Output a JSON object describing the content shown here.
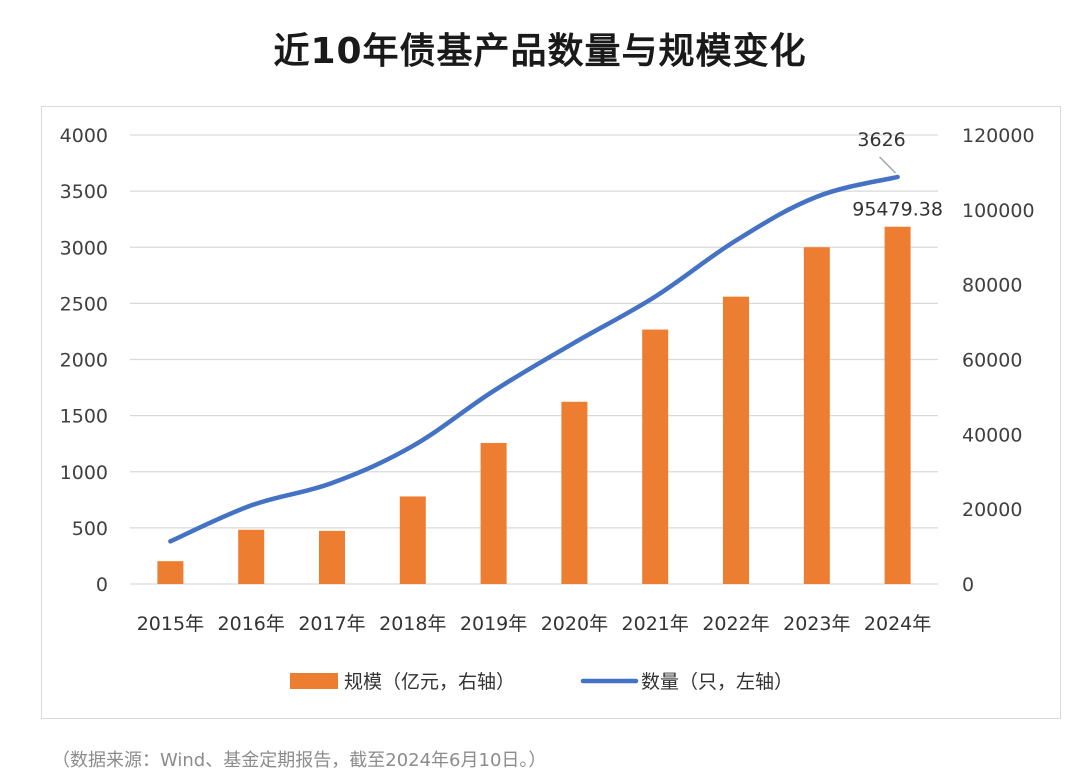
{
  "title": "近10年债基产品数量与规模变化",
  "source_note": "（数据来源：Wind、基金定期报告，截至2024年6月10日。）",
  "colors": {
    "bar": "#ED7D31",
    "line": "#4472C4",
    "grid": "#d9d9d9",
    "frame": "#d9d9d9"
  },
  "chart_data": {
    "type": "bar",
    "title": "近10年债基产品数量与规模变化",
    "categories": [
      "2015年",
      "2016年",
      "2017年",
      "2018年",
      "2019年",
      "2020年",
      "2021年",
      "2022年",
      "2023年",
      "2024年"
    ],
    "series": [
      {
        "name": "规模（亿元，右轴）",
        "type": "bar",
        "axis": "right",
        "color": "#ED7D31",
        "values": [
          6100,
          14500,
          14200,
          23400,
          37700,
          48700,
          68000,
          76800,
          90000,
          95479.38
        ]
      },
      {
        "name": "数量（只，左轴）",
        "type": "line",
        "axis": "left",
        "color": "#4472C4",
        "values": [
          380,
          700,
          900,
          1230,
          1720,
          2150,
          2560,
          3060,
          3450,
          3626
        ]
      }
    ],
    "y_left": {
      "min": 0,
      "max": 4000,
      "ticks": [
        "0",
        "500",
        "1000",
        "1500",
        "2000",
        "2500",
        "3000",
        "3500",
        "4000"
      ]
    },
    "y_right": {
      "min": 0,
      "max": 120000,
      "ticks": [
        "0",
        "20000",
        "40000",
        "60000",
        "80000",
        "100000",
        "120000"
      ]
    },
    "data_labels": [
      {
        "series": "数量（只，左轴）",
        "category": "2024年",
        "text": "3626"
      },
      {
        "series": "规模（亿元，右轴）",
        "category": "2024年",
        "text": "95479.38"
      }
    ],
    "grid": true,
    "legend_position": "bottom"
  }
}
